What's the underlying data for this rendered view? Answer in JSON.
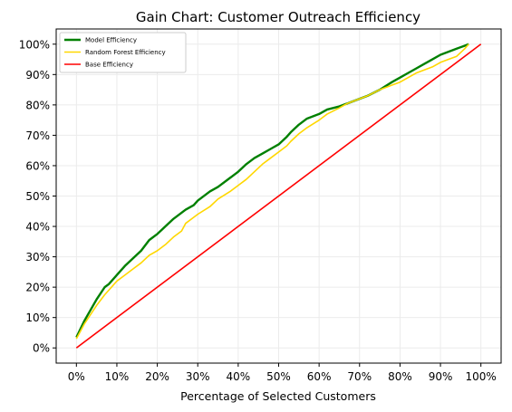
{
  "chart_data": {
    "type": "line",
    "title": "Gain Chart: Customer Outreach Efficiency",
    "xlabel": "Percentage of Selected Customers",
    "ylabel": "",
    "xlim": [
      -5,
      105
    ],
    "ylim": [
      -5,
      105
    ],
    "x_ticks": [
      0,
      10,
      20,
      30,
      40,
      50,
      60,
      70,
      80,
      90,
      100
    ],
    "x_tick_labels": [
      "0%",
      "10%",
      "20%",
      "30%",
      "40%",
      "50%",
      "60%",
      "70%",
      "80%",
      "90%",
      "100%"
    ],
    "y_ticks": [
      0,
      10,
      20,
      30,
      40,
      50,
      60,
      70,
      80,
      90,
      100
    ],
    "y_tick_labels": [
      "0%",
      "10%",
      "20%",
      "30%",
      "40%",
      "50%",
      "60%",
      "70%",
      "80%",
      "90%",
      "100%"
    ],
    "grid": true,
    "legend_position": "top-left",
    "series": [
      {
        "name": "Model Efficiency",
        "color": "#008000",
        "x": [
          0,
          2,
          5,
          7,
          8,
          10,
          12,
          14,
          16,
          18,
          20,
          22,
          24,
          26,
          27,
          29,
          30,
          33,
          35,
          38,
          40,
          42,
          44,
          46,
          48,
          50,
          52,
          53,
          55,
          57,
          60,
          62,
          65,
          67,
          70,
          72,
          75,
          78,
          80,
          82,
          84,
          86,
          88,
          90,
          92,
          94,
          96,
          97
        ],
        "values": [
          3.5,
          9,
          16,
          20,
          21,
          24,
          27,
          29.5,
          32,
          35.5,
          37.5,
          40,
          42.5,
          44.5,
          45.5,
          47,
          48.5,
          51.5,
          53,
          56,
          58,
          60.5,
          62.5,
          64,
          65.5,
          67,
          69.5,
          71,
          73.5,
          75.5,
          77,
          78.5,
          79.5,
          80.5,
          82,
          83,
          85,
          87.5,
          89,
          90.5,
          92,
          93.5,
          95,
          96.5,
          97.5,
          98.5,
          99.5,
          100
        ]
      },
      {
        "name": "Random Forest Efficiency",
        "color": "#ffd700",
        "x": [
          0,
          2,
          5,
          7,
          8,
          10,
          12,
          14,
          16,
          18,
          20,
          22,
          24,
          26,
          27,
          29,
          30,
          33,
          35,
          38,
          40,
          42,
          44,
          46,
          48,
          50,
          52,
          53,
          55,
          57,
          60,
          62,
          65,
          67,
          70,
          72,
          75,
          78,
          80,
          82,
          84,
          86,
          88,
          90,
          92,
          94,
          96,
          97
        ],
        "values": [
          3,
          8,
          14,
          17.5,
          19,
          22,
          24,
          26,
          28,
          30.5,
          32,
          34,
          36.5,
          38.5,
          41,
          43,
          44,
          46.5,
          49,
          51.5,
          53.5,
          55.5,
          58,
          60.5,
          62.5,
          64.5,
          66.5,
          68,
          70.5,
          72.5,
          75,
          77,
          79,
          80.5,
          82,
          83,
          85,
          86.5,
          87.5,
          89,
          90.5,
          91.5,
          92.5,
          94,
          95,
          96,
          98.5,
          100
        ]
      },
      {
        "name": "Base Efficiency",
        "color": "#ff0000",
        "x": [
          0,
          100
        ],
        "values": [
          0,
          100
        ]
      }
    ]
  }
}
